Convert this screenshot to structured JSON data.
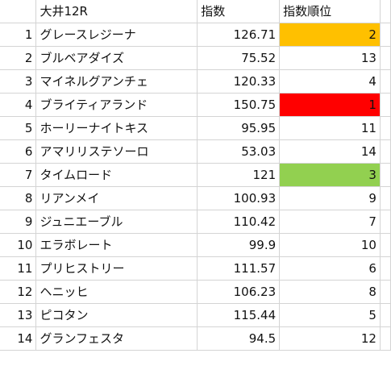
{
  "header": {
    "rownum": "",
    "name": "大井12R",
    "score": "指数",
    "rank": "指数順位"
  },
  "rows": [
    {
      "num": "1",
      "name": "グレースレジーナ",
      "score": "126.71",
      "rank": "2",
      "highlight": "#ffc000"
    },
    {
      "num": "2",
      "name": "ブルベアダイズ",
      "score": "75.52",
      "rank": "13",
      "highlight": ""
    },
    {
      "num": "3",
      "name": "マイネルグアンチェ",
      "score": "120.33",
      "rank": "4",
      "highlight": ""
    },
    {
      "num": "4",
      "name": "ブライティアランド",
      "score": "150.75",
      "rank": "1",
      "highlight": "#ff0000"
    },
    {
      "num": "5",
      "name": "ホーリーナイトキス",
      "score": "95.95",
      "rank": "11",
      "highlight": ""
    },
    {
      "num": "6",
      "name": "アマリリステソーロ",
      "score": "53.03",
      "rank": "14",
      "highlight": ""
    },
    {
      "num": "7",
      "name": "タイムロード",
      "score": "121",
      "rank": "3",
      "highlight": "#92d050"
    },
    {
      "num": "8",
      "name": "リアンメイ",
      "score": "100.93",
      "rank": "9",
      "highlight": ""
    },
    {
      "num": "9",
      "name": "ジュニエーブル",
      "score": "110.42",
      "rank": "7",
      "highlight": ""
    },
    {
      "num": "10",
      "name": "エラボレート",
      "score": "99.9",
      "rank": "10",
      "highlight": ""
    },
    {
      "num": "11",
      "name": "プリヒストリー",
      "score": "111.57",
      "rank": "6",
      "highlight": ""
    },
    {
      "num": "12",
      "name": "ヘニッヒ",
      "score": "106.23",
      "rank": "8",
      "highlight": ""
    },
    {
      "num": "13",
      "name": "ピコタン",
      "score": "115.44",
      "rank": "5",
      "highlight": ""
    },
    {
      "num": "14",
      "name": "グランフェスタ",
      "score": "94.5",
      "rank": "12",
      "highlight": ""
    }
  ]
}
